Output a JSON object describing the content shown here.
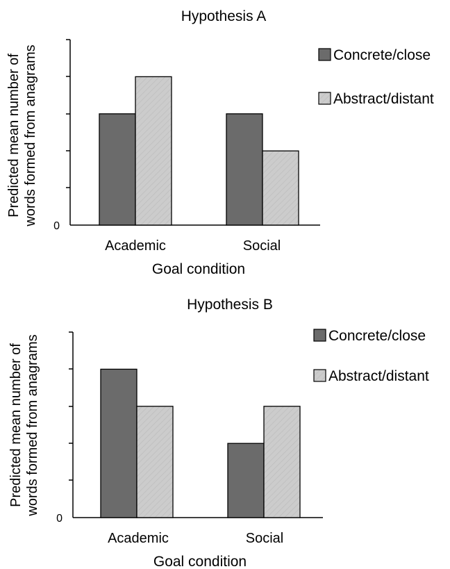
{
  "colors": {
    "concrete": "#6b6b6b",
    "abstract": "#cccccc",
    "axis": "#000000",
    "bar_stroke": "#000000"
  },
  "chart_data": [
    {
      "type": "bar",
      "title": "Hypothesis A",
      "xlabel": "Goal condition",
      "ylabel_lines": [
        "Predicted mean number of",
        "words formed from anagrams"
      ],
      "y_tick_labels": [
        "0"
      ],
      "ylim": [
        0,
        5
      ],
      "grid": false,
      "legend_position": "top-right",
      "categories": [
        "Academic",
        "Social"
      ],
      "series": [
        {
          "name": "Concrete/close",
          "color_key": "concrete",
          "values": [
            3,
            3
          ]
        },
        {
          "name": "Abstract/distant",
          "color_key": "abstract",
          "values": [
            4,
            2
          ]
        }
      ]
    },
    {
      "type": "bar",
      "title": "Hypothesis B",
      "xlabel": "Goal condition",
      "ylabel_lines": [
        "Predicted mean number of",
        "words formed from anagrams"
      ],
      "y_tick_labels": [
        "0"
      ],
      "ylim": [
        0,
        5
      ],
      "grid": false,
      "legend_position": "top-right",
      "categories": [
        "Academic",
        "Social"
      ],
      "series": [
        {
          "name": "Concrete/close",
          "color_key": "concrete",
          "values": [
            4,
            2
          ]
        },
        {
          "name": "Abstract/distant",
          "color_key": "abstract",
          "values": [
            3,
            3
          ]
        }
      ]
    }
  ]
}
